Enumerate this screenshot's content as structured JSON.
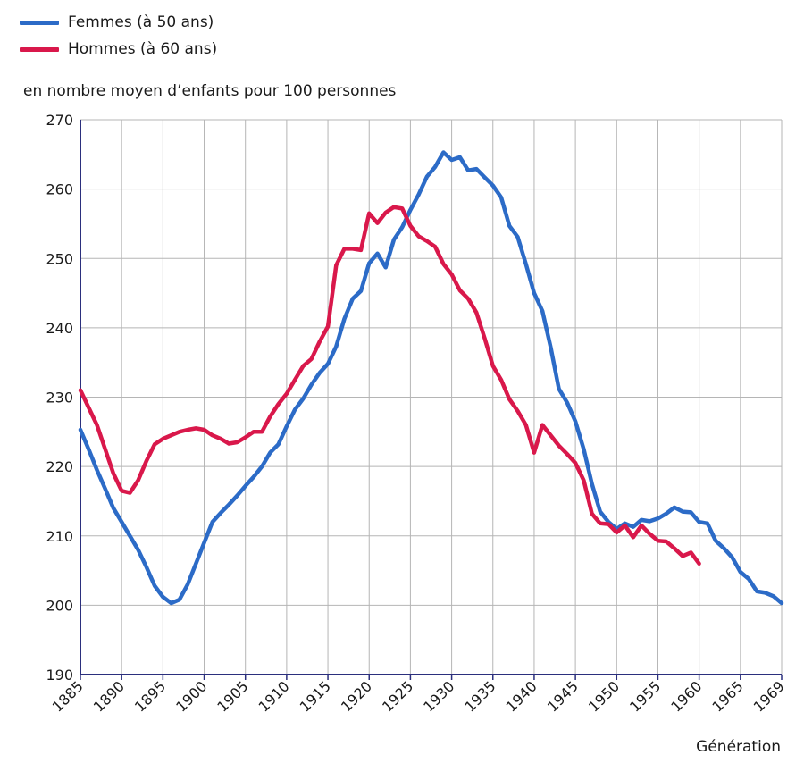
{
  "legend": {
    "items": [
      {
        "label": "Femmes (à 50 ans)",
        "color": "#2c6bc7"
      },
      {
        "label": "Hommes (à 60 ans)",
        "color": "#d9184b"
      }
    ]
  },
  "chart_data": {
    "type": "line",
    "ylabel": "en nombre moyen d’enfants pour 100 personnes",
    "xlabel": "Génération",
    "xlim": [
      1885,
      1969
    ],
    "ylim": [
      190,
      270
    ],
    "grid": true,
    "legend_position": "top-left",
    "yticks": [
      190,
      200,
      210,
      220,
      230,
      240,
      250,
      260,
      270
    ],
    "xticks": [
      1885,
      1890,
      1895,
      1900,
      1905,
      1910,
      1915,
      1920,
      1925,
      1930,
      1935,
      1940,
      1945,
      1950,
      1955,
      1960,
      1965,
      1969
    ],
    "series": [
      {
        "name": "Femmes (à 50 ans)",
        "color": "#2c6bc7",
        "points": [
          [
            1885,
            225.3
          ],
          [
            1886,
            222.5
          ],
          [
            1887,
            219.5
          ],
          [
            1888,
            216.8
          ],
          [
            1889,
            214.0
          ],
          [
            1890,
            212.0
          ],
          [
            1891,
            210.0
          ],
          [
            1892,
            208.0
          ],
          [
            1893,
            205.5
          ],
          [
            1894,
            202.8
          ],
          [
            1895,
            201.2
          ],
          [
            1896,
            200.3
          ],
          [
            1897,
            200.8
          ],
          [
            1898,
            203.0
          ],
          [
            1899,
            206.0
          ],
          [
            1900,
            209.0
          ],
          [
            1901,
            212.0
          ],
          [
            1902,
            213.3
          ],
          [
            1903,
            214.5
          ],
          [
            1904,
            215.8
          ],
          [
            1905,
            217.2
          ],
          [
            1906,
            218.5
          ],
          [
            1907,
            220.0
          ],
          [
            1908,
            222.0
          ],
          [
            1909,
            223.2
          ],
          [
            1910,
            225.8
          ],
          [
            1911,
            228.2
          ],
          [
            1912,
            229.8
          ],
          [
            1913,
            231.8
          ],
          [
            1914,
            233.5
          ],
          [
            1915,
            234.8
          ],
          [
            1916,
            237.3
          ],
          [
            1917,
            241.3
          ],
          [
            1918,
            244.2
          ],
          [
            1919,
            245.3
          ],
          [
            1920,
            249.3
          ],
          [
            1921,
            250.7
          ],
          [
            1922,
            248.7
          ],
          [
            1923,
            252.7
          ],
          [
            1924,
            254.5
          ],
          [
            1925,
            257.0
          ],
          [
            1926,
            259.2
          ],
          [
            1927,
            261.8
          ],
          [
            1928,
            263.2
          ],
          [
            1929,
            265.3
          ],
          [
            1930,
            264.2
          ],
          [
            1931,
            264.6
          ],
          [
            1932,
            262.7
          ],
          [
            1933,
            262.9
          ],
          [
            1934,
            261.7
          ],
          [
            1935,
            260.5
          ],
          [
            1936,
            258.8
          ],
          [
            1937,
            254.7
          ],
          [
            1938,
            253.1
          ],
          [
            1939,
            249.2
          ],
          [
            1940,
            245.0
          ],
          [
            1941,
            242.4
          ],
          [
            1942,
            237.2
          ],
          [
            1943,
            231.2
          ],
          [
            1944,
            229.2
          ],
          [
            1945,
            226.5
          ],
          [
            1946,
            222.5
          ],
          [
            1947,
            217.5
          ],
          [
            1948,
            213.5
          ],
          [
            1949,
            212.0
          ],
          [
            1950,
            211.0
          ],
          [
            1951,
            211.8
          ],
          [
            1952,
            211.3
          ],
          [
            1953,
            212.3
          ],
          [
            1954,
            212.1
          ],
          [
            1955,
            212.5
          ],
          [
            1956,
            213.2
          ],
          [
            1957,
            214.1
          ],
          [
            1958,
            213.5
          ],
          [
            1959,
            213.4
          ],
          [
            1960,
            212.0
          ],
          [
            1961,
            211.8
          ],
          [
            1962,
            209.3
          ],
          [
            1963,
            208.2
          ],
          [
            1964,
            206.9
          ],
          [
            1965,
            204.8
          ],
          [
            1966,
            203.8
          ],
          [
            1967,
            202.0
          ],
          [
            1968,
            201.8
          ],
          [
            1969,
            201.3
          ],
          [
            1970,
            200.3
          ]
        ]
      },
      {
        "name": "Hommes (à 60 ans)",
        "color": "#d9184b",
        "points": [
          [
            1885,
            231.0
          ],
          [
            1886,
            228.5
          ],
          [
            1887,
            226.0
          ],
          [
            1888,
            222.5
          ],
          [
            1889,
            219.0
          ],
          [
            1890,
            216.5
          ],
          [
            1891,
            216.2
          ],
          [
            1892,
            218.0
          ],
          [
            1893,
            220.8
          ],
          [
            1894,
            223.2
          ],
          [
            1895,
            224.0
          ],
          [
            1896,
            224.5
          ],
          [
            1897,
            225.0
          ],
          [
            1898,
            225.3
          ],
          [
            1899,
            225.5
          ],
          [
            1900,
            225.3
          ],
          [
            1901,
            224.5
          ],
          [
            1902,
            224.0
          ],
          [
            1903,
            223.3
          ],
          [
            1904,
            223.5
          ],
          [
            1905,
            224.2
          ],
          [
            1906,
            225.0
          ],
          [
            1907,
            225.0
          ],
          [
            1908,
            227.2
          ],
          [
            1909,
            229.0
          ],
          [
            1910,
            230.5
          ],
          [
            1911,
            232.5
          ],
          [
            1912,
            234.5
          ],
          [
            1913,
            235.5
          ],
          [
            1914,
            238.0
          ],
          [
            1915,
            240.2
          ],
          [
            1916,
            249.0
          ],
          [
            1917,
            251.4
          ],
          [
            1918,
            251.4
          ],
          [
            1919,
            251.2
          ],
          [
            1920,
            256.5
          ],
          [
            1921,
            255.1
          ],
          [
            1922,
            256.6
          ],
          [
            1923,
            257.4
          ],
          [
            1924,
            257.2
          ],
          [
            1925,
            254.7
          ],
          [
            1926,
            253.2
          ],
          [
            1927,
            252.5
          ],
          [
            1928,
            251.7
          ],
          [
            1929,
            249.2
          ],
          [
            1930,
            247.7
          ],
          [
            1931,
            245.4
          ],
          [
            1932,
            244.2
          ],
          [
            1933,
            242.2
          ],
          [
            1934,
            238.5
          ],
          [
            1935,
            234.5
          ],
          [
            1936,
            232.5
          ],
          [
            1937,
            229.7
          ],
          [
            1938,
            228.0
          ],
          [
            1939,
            226.0
          ],
          [
            1940,
            222.0
          ],
          [
            1941,
            226.0
          ],
          [
            1942,
            224.5
          ],
          [
            1943,
            223.0
          ],
          [
            1944,
            221.8
          ],
          [
            1945,
            220.5
          ],
          [
            1946,
            218.0
          ],
          [
            1947,
            213.2
          ],
          [
            1948,
            211.8
          ],
          [
            1949,
            211.7
          ],
          [
            1950,
            210.5
          ],
          [
            1951,
            211.5
          ],
          [
            1952,
            209.8
          ],
          [
            1953,
            211.5
          ],
          [
            1954,
            210.3
          ],
          [
            1955,
            209.3
          ],
          [
            1956,
            209.2
          ],
          [
            1957,
            208.2
          ],
          [
            1958,
            207.1
          ],
          [
            1959,
            207.6
          ],
          [
            1960,
            206.0
          ]
        ]
      }
    ]
  }
}
